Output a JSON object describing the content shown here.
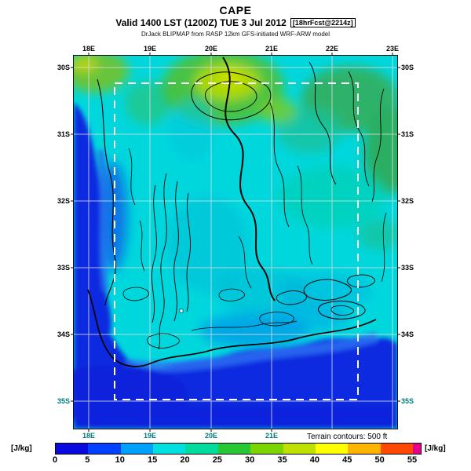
{
  "header": {
    "title": "CAPE",
    "valid_line": "Valid 1400 LST (1200Z) TUE 3 Jul 2012",
    "fcst_tag": "[18hrFcst@2214z]",
    "model_line": "DrJack BLIPMAP from RASP 12km GFS-initiated WRF-ARW model"
  },
  "map": {
    "lon_labels_top": [
      "18E",
      "19E",
      "20E",
      "21E",
      "22E",
      "23E"
    ],
    "lon_labels_bottom": [
      "18E",
      "19E",
      "20E",
      "21E"
    ],
    "lat_labels_left": [
      "30S",
      "31S",
      "32S",
      "33S",
      "34S",
      "35S"
    ],
    "lat_labels_right": [
      "30S",
      "31S",
      "32S",
      "33S",
      "34S",
      "35S"
    ],
    "palette": {
      "base": "#00d7dd",
      "ocean": "#0a2ce0",
      "domain_box": "#ffffff",
      "contour": "#000000"
    }
  },
  "footer": {
    "terrain_note": "Terrain contours: 500 ft"
  },
  "colorbar": {
    "unit_left": "[J/kg]",
    "unit_right": "[J/kg]",
    "ticks": [
      "0",
      "5",
      "10",
      "15",
      "20",
      "25",
      "30",
      "35",
      "40",
      "45",
      "50",
      "55"
    ],
    "segment_colors": [
      "#0a0ae0",
      "#0040ff",
      "#00a0ff",
      "#00e0e0",
      "#00dc9c",
      "#28c834",
      "#7cd400",
      "#c0e000",
      "#ffff00",
      "#ffb400",
      "#ff4800",
      "#e60090"
    ]
  }
}
